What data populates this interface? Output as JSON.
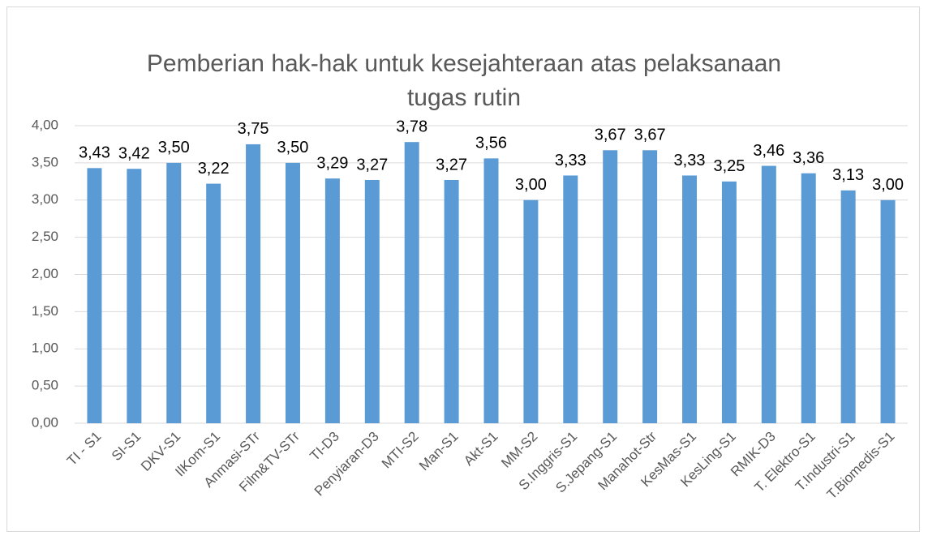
{
  "chart_data": {
    "type": "bar",
    "title": "Pemberian hak-hak untuk kesejahteraan atas pelaksanaan tugas rutin",
    "categories": [
      "TI - S1",
      "SI-S1",
      "DKV-S1",
      "IlKom-S1",
      "Anmasi-STr",
      "Film&TV-STr",
      "TI-D3",
      "Penyiaran-D3",
      "MTI-S2",
      "Man-S1",
      "Akt-S1",
      "MM-S2",
      "S.Inggris-S1",
      "S.Jepang-S1",
      "Manahot-Str",
      "KesMas-S1",
      "KesLing-S1",
      "RMIK-D3",
      "T. Elektro-S1",
      "T.Industri-S1",
      "T.Biomedis-S1"
    ],
    "values": [
      3.43,
      3.42,
      3.5,
      3.22,
      3.75,
      3.5,
      3.29,
      3.27,
      3.78,
      3.27,
      3.56,
      3.0,
      3.33,
      3.67,
      3.67,
      3.33,
      3.25,
      3.46,
      3.36,
      3.13,
      3.0
    ],
    "value_labels": [
      "3,43",
      "3,42",
      "3,50",
      "3,22",
      "3,75",
      "3,50",
      "3,29",
      "3,27",
      "3,78",
      "3,27",
      "3,56",
      "3,00",
      "3,33",
      "3,67",
      "3,67",
      "3,33",
      "3,25",
      "3,46",
      "3,36",
      "3,13",
      "3,00"
    ],
    "color": "#5b9bd5",
    "ylim": [
      0,
      4
    ],
    "yticks": [
      {
        "value": 0,
        "label": "0,00"
      },
      {
        "value": 0.5,
        "label": "0,50"
      },
      {
        "value": 1,
        "label": "1,00"
      },
      {
        "value": 1.5,
        "label": "1,50"
      },
      {
        "value": 2,
        "label": "2,00"
      },
      {
        "value": 2.5,
        "label": "2,50"
      },
      {
        "value": 3,
        "label": "3,00"
      },
      {
        "value": 3.5,
        "label": "3,50"
      },
      {
        "value": 4,
        "label": "4,00"
      }
    ],
    "grid": true
  }
}
